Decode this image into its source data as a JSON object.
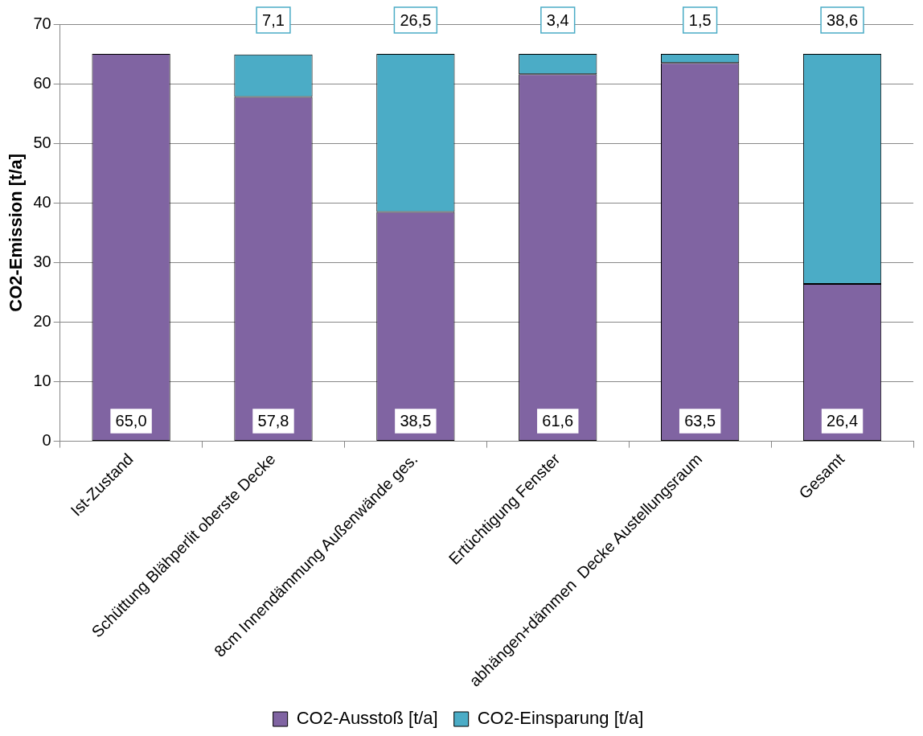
{
  "chart_data": {
    "type": "bar",
    "stacked": true,
    "ylabel": "CO2-Emission [t/a]",
    "categories": [
      "Ist-Zustand",
      "Schüttung Blähperlit oberste Decke",
      "8cm Innendämmung Außenwände ges.",
      "Ertüchtigung Fenster",
      "abhängen+dämmen  Decke Austellungsraum",
      "Gesamt"
    ],
    "series": [
      {
        "name": "CO2-Ausstoß [t/a]",
        "color": "#8064a2",
        "values": [
          65.0,
          57.8,
          38.5,
          61.6,
          63.5,
          26.4
        ],
        "value_labels": [
          "65,0",
          "57,8",
          "38,5",
          "61,6",
          "63,5",
          "26,4"
        ]
      },
      {
        "name": "CO2-Einsparung [t/a]",
        "color": "#4bacc6",
        "values": [
          null,
          7.1,
          26.5,
          3.4,
          1.5,
          38.6
        ],
        "value_labels": [
          null,
          "7,1",
          "26,5",
          "3,4",
          "1,5",
          "38,6"
        ]
      }
    ],
    "ylim": [
      0,
      70
    ],
    "yticks": [
      0,
      10,
      20,
      30,
      40,
      50,
      60,
      70
    ],
    "grid": "y",
    "legend": "bottom"
  }
}
